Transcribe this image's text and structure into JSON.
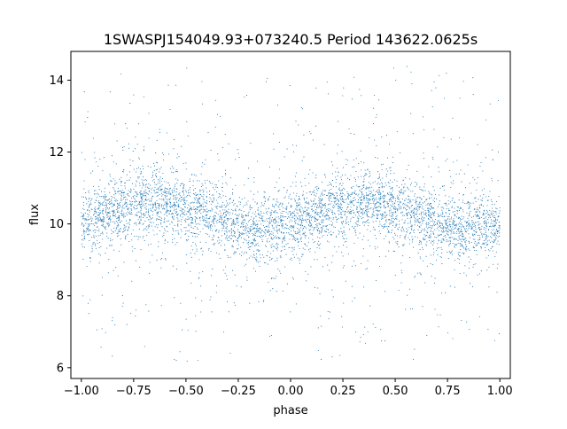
{
  "chart_data": {
    "type": "scatter",
    "title": "1SWASPJ154049.93+073240.5 Period 143622.0625s",
    "xlabel": "phase",
    "ylabel": "flux",
    "xlim": [
      -1.05,
      1.05
    ],
    "ylim": [
      5.7,
      14.8
    ],
    "xticks": [
      -1.0,
      -0.75,
      -0.5,
      -0.25,
      0.0,
      0.25,
      0.5,
      0.75,
      1.0
    ],
    "xtick_labels": [
      "−1.00",
      "−0.75",
      "−0.50",
      "−0.25",
      "0.00",
      "0.25",
      "0.50",
      "0.75",
      "1.00"
    ],
    "yticks": [
      6,
      8,
      10,
      12,
      14
    ],
    "ytick_labels": [
      "6",
      "8",
      "10",
      "12",
      "14"
    ],
    "grid": false,
    "marker_color": "#1f77b4",
    "series": [
      {
        "phase_range": [
          -1.0,
          1.0
        ],
        "flux_range": [
          6.1,
          14.4
        ],
        "trend": {
          "x": [
            -1.0,
            -0.875,
            -0.75,
            -0.625,
            -0.5,
            -0.375,
            -0.25,
            -0.125,
            0.0,
            0.125,
            0.25,
            0.375,
            0.5,
            0.625,
            0.75,
            0.875,
            1.0
          ],
          "y": [
            10.1,
            10.3,
            10.55,
            10.6,
            10.45,
            10.2,
            9.95,
            9.85,
            10.0,
            10.3,
            10.55,
            10.6,
            10.45,
            10.2,
            9.95,
            9.85,
            10.0
          ]
        },
        "core_spread": 0.45
      }
    ]
  }
}
